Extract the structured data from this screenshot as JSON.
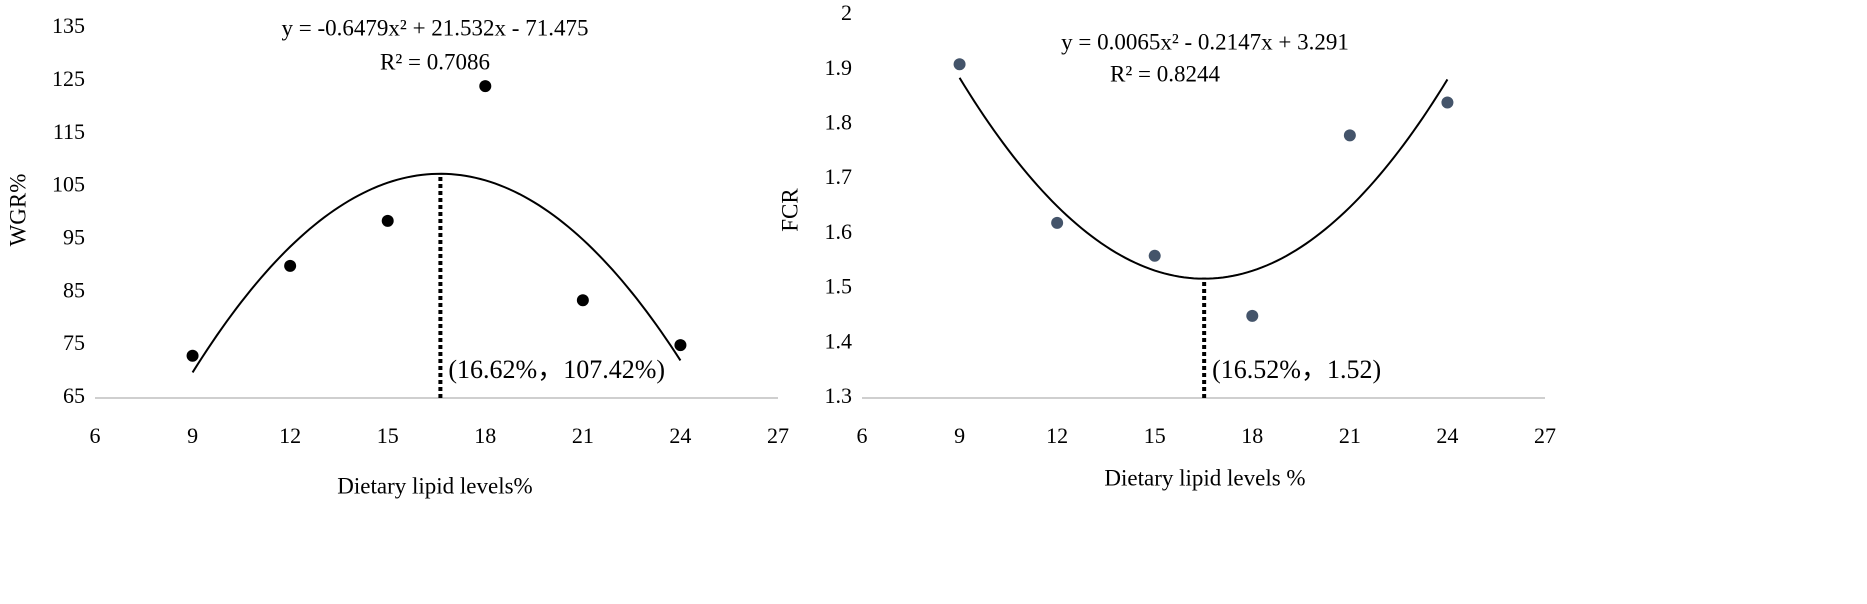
{
  "chart_data": [
    {
      "type": "scatter",
      "x_label": "Dietary lipid levels%",
      "y_label": "WGR%",
      "x": [
        9,
        12,
        15,
        18,
        21,
        24
      ],
      "values": [
        73,
        90,
        98.5,
        124,
        83.5,
        75
      ],
      "color": "#000000",
      "xlim": [
        6,
        27
      ],
      "xticks": [
        6,
        9,
        12,
        15,
        18,
        21,
        24,
        27
      ],
      "ylim": [
        65,
        135
      ],
      "yticks": [
        65,
        75,
        85,
        95,
        105,
        115,
        125,
        135
      ],
      "trendline": {
        "coefficients": [
          -0.6479,
          21.532,
          -71.475
        ],
        "equation": "y = -0.6479x² + 21.532x - 71.475",
        "r2": "R² = 0.7086"
      },
      "vertex": {
        "x": 16.62,
        "y": 107.42,
        "label": "(16.62%，107.42%)"
      }
    },
    {
      "type": "scatter",
      "x_label": "Dietary lipid levels %",
      "y_label": "FCR",
      "x": [
        9,
        12,
        15,
        18,
        21,
        24
      ],
      "values": [
        1.91,
        1.62,
        1.56,
        1.45,
        1.78,
        1.84
      ],
      "color": "#44546a",
      "xlim": [
        6,
        27
      ],
      "xticks": [
        6,
        9,
        12,
        15,
        18,
        21,
        24,
        27
      ],
      "ylim": [
        1.3,
        2
      ],
      "yticks": [
        1.3,
        1.4,
        1.5,
        1.6,
        1.7,
        1.8,
        1.9,
        2
      ],
      "trendline": {
        "coefficients": [
          0.0065,
          -0.2147,
          3.291
        ],
        "equation": "y = 0.0065x² - 0.2147x + 3.291",
        "r2": "R² = 0.8244"
      },
      "vertex": {
        "x": 16.52,
        "y": 1.52,
        "label": "(16.52%，1.52)"
      }
    }
  ]
}
